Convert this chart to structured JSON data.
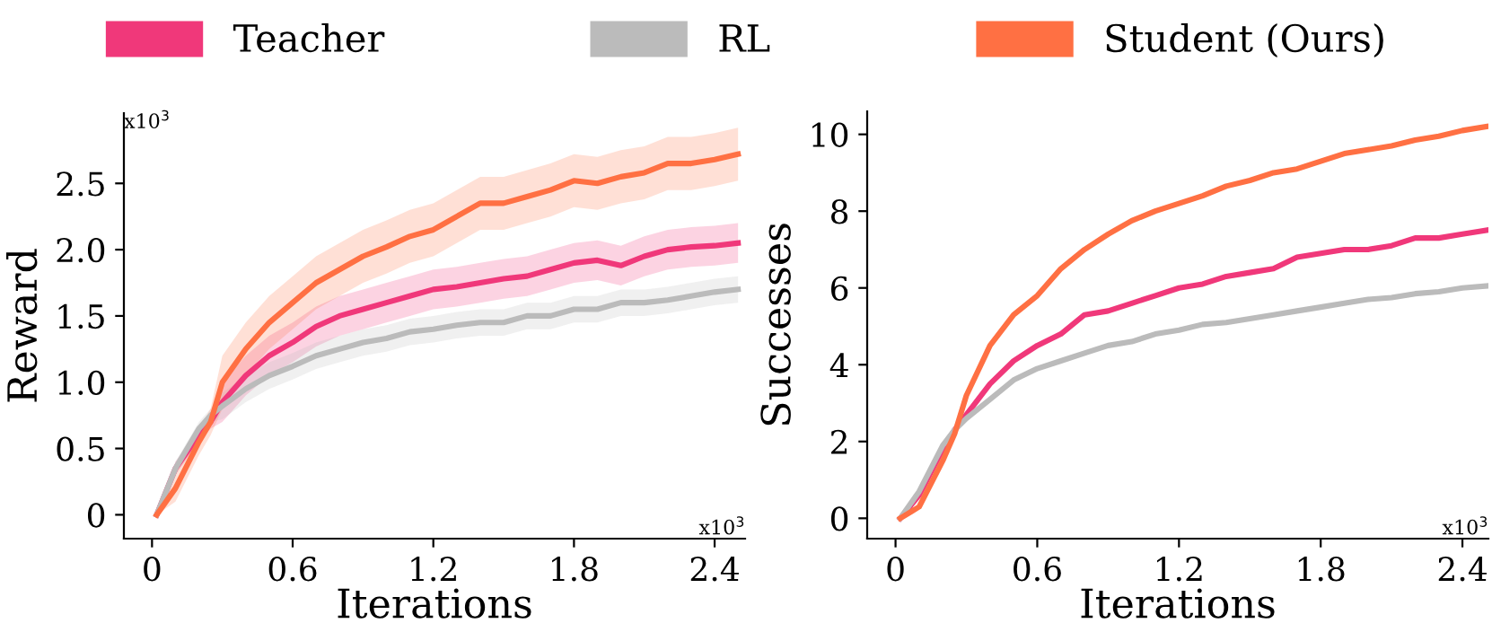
{
  "chart_data": [
    {
      "type": "line",
      "xlabel": "Iterations",
      "ylabel": "Reward",
      "legend": "top",
      "grid": false,
      "xlim": [
        -0.12,
        2.53
      ],
      "xticks": [
        {
          "value": 0,
          "label": "0"
        },
        0.6,
        1.2,
        1.8,
        2.4
      ],
      "ylim": [
        -0.18,
        3.03
      ],
      "yticks": [
        {
          "value": 0,
          "label": "0"
        },
        0.5,
        {
          "value": 1,
          "label": "1.0"
        },
        1.5,
        {
          "value": 2,
          "label": "2.0"
        },
        2.5
      ],
      "annotations": [
        "x10$^{3}$",
        "x10$^{3}$"
      ],
      "x": [
        0.02,
        0.1,
        0.2,
        0.25,
        0.3,
        0.4,
        0.5,
        0.6,
        0.7,
        0.8,
        0.9,
        1.0,
        1.1,
        1.2,
        1.3,
        1.4,
        1.5,
        1.6,
        1.7,
        1.8,
        1.9,
        2.0,
        2.1,
        2.2,
        2.3,
        2.4,
        2.5
      ],
      "series": [
        {
          "name": "Teacher",
          "color": "#f0387a",
          "values": [
            0,
            0.35,
            0.6,
            0.7,
            0.85,
            1.05,
            1.2,
            1.3,
            1.42,
            1.5,
            1.55,
            1.6,
            1.65,
            1.7,
            1.72,
            1.75,
            1.78,
            1.8,
            1.85,
            1.9,
            1.92,
            1.88,
            1.95,
            2.0,
            2.02,
            2.03,
            2.05
          ],
          "lower": [
            0,
            0.3,
            0.55,
            0.65,
            0.7,
            0.9,
            1.05,
            1.15,
            1.27,
            1.35,
            1.4,
            1.45,
            1.5,
            1.55,
            1.57,
            1.6,
            1.63,
            1.65,
            1.7,
            1.75,
            1.77,
            1.73,
            1.8,
            1.85,
            1.87,
            1.88,
            1.9
          ],
          "upper": [
            0,
            0.4,
            0.65,
            0.75,
            1.0,
            1.2,
            1.35,
            1.45,
            1.57,
            1.65,
            1.7,
            1.75,
            1.8,
            1.85,
            1.87,
            1.9,
            1.93,
            1.95,
            2.0,
            2.05,
            2.07,
            2.03,
            2.1,
            2.15,
            2.17,
            2.18,
            2.2
          ]
        },
        {
          "name": "RL",
          "color": "#bbbbbb",
          "values": [
            0,
            0.35,
            0.65,
            0.75,
            0.82,
            0.95,
            1.05,
            1.12,
            1.2,
            1.25,
            1.3,
            1.33,
            1.38,
            1.4,
            1.43,
            1.45,
            1.45,
            1.5,
            1.5,
            1.55,
            1.55,
            1.6,
            1.6,
            1.62,
            1.65,
            1.68,
            1.7
          ],
          "lower": [
            0,
            0.3,
            0.6,
            0.7,
            0.72,
            0.85,
            0.95,
            1.02,
            1.1,
            1.15,
            1.2,
            1.23,
            1.28,
            1.3,
            1.33,
            1.35,
            1.35,
            1.4,
            1.4,
            1.45,
            1.45,
            1.5,
            1.5,
            1.52,
            1.55,
            1.58,
            1.6
          ],
          "upper": [
            0,
            0.4,
            0.7,
            0.8,
            0.92,
            1.05,
            1.15,
            1.22,
            1.3,
            1.35,
            1.4,
            1.43,
            1.48,
            1.5,
            1.53,
            1.55,
            1.55,
            1.6,
            1.6,
            1.65,
            1.65,
            1.7,
            1.7,
            1.72,
            1.75,
            1.78,
            1.8
          ]
        },
        {
          "name": "Student (Ours)",
          "color": "#ff7043",
          "values": [
            0,
            0.2,
            0.55,
            0.7,
            1.0,
            1.25,
            1.45,
            1.6,
            1.75,
            1.85,
            1.95,
            2.02,
            2.1,
            2.15,
            2.25,
            2.35,
            2.35,
            2.4,
            2.45,
            2.52,
            2.5,
            2.55,
            2.58,
            2.65,
            2.65,
            2.68,
            2.72
          ],
          "lower": [
            0,
            0.1,
            0.45,
            0.6,
            0.8,
            1.05,
            1.25,
            1.4,
            1.55,
            1.65,
            1.75,
            1.82,
            1.9,
            1.95,
            2.05,
            2.15,
            2.15,
            2.2,
            2.25,
            2.32,
            2.3,
            2.35,
            2.38,
            2.45,
            2.45,
            2.48,
            2.52
          ],
          "upper": [
            0,
            0.3,
            0.65,
            0.8,
            1.2,
            1.45,
            1.65,
            1.8,
            1.95,
            2.05,
            2.15,
            2.22,
            2.3,
            2.35,
            2.45,
            2.55,
            2.55,
            2.6,
            2.65,
            2.72,
            2.7,
            2.75,
            2.78,
            2.85,
            2.85,
            2.88,
            2.92
          ]
        }
      ]
    },
    {
      "type": "line",
      "xlabel": "Iterations",
      "ylabel": "Successes",
      "grid": false,
      "xlim": [
        -0.12,
        2.51
      ],
      "xticks": [
        {
          "value": 0,
          "label": "0"
        },
        0.6,
        1.2,
        1.8,
        2.4
      ],
      "ylim": [
        -0.53,
        10.6
      ],
      "yticks": [
        0,
        2,
        4,
        6,
        8,
        10
      ],
      "annotations": [
        "x10$^{3}$"
      ],
      "x": [
        0.02,
        0.1,
        0.2,
        0.25,
        0.3,
        0.4,
        0.5,
        0.6,
        0.7,
        0.8,
        0.9,
        1.0,
        1.1,
        1.2,
        1.3,
        1.4,
        1.5,
        1.6,
        1.7,
        1.8,
        1.9,
        2.0,
        2.1,
        2.2,
        2.3,
        2.4,
        2.5
      ],
      "series": [
        {
          "color": "#f0387a",
          "values": [
            0,
            0.6,
            1.8,
            2.3,
            2.7,
            3.5,
            4.1,
            4.5,
            4.8,
            5.3,
            5.4,
            5.6,
            5.8,
            6.0,
            6.1,
            6.3,
            6.4,
            6.5,
            6.8,
            6.9,
            7.0,
            7.0,
            7.1,
            7.3,
            7.3,
            7.4,
            7.5
          ]
        },
        {
          "color": "#bbbbbb",
          "values": [
            0,
            0.7,
            1.9,
            2.3,
            2.6,
            3.1,
            3.6,
            3.9,
            4.1,
            4.3,
            4.5,
            4.6,
            4.8,
            4.9,
            5.05,
            5.1,
            5.2,
            5.3,
            5.4,
            5.5,
            5.6,
            5.7,
            5.75,
            5.85,
            5.9,
            6.0,
            6.05
          ]
        },
        {
          "color": "#ff7043",
          "values": [
            0,
            0.3,
            1.5,
            2.2,
            3.2,
            4.5,
            5.3,
            5.8,
            6.5,
            7.0,
            7.4,
            7.75,
            8.0,
            8.2,
            8.4,
            8.65,
            8.8,
            9.0,
            9.1,
            9.3,
            9.5,
            9.6,
            9.7,
            9.85,
            9.95,
            10.1,
            10.2
          ]
        }
      ]
    }
  ]
}
